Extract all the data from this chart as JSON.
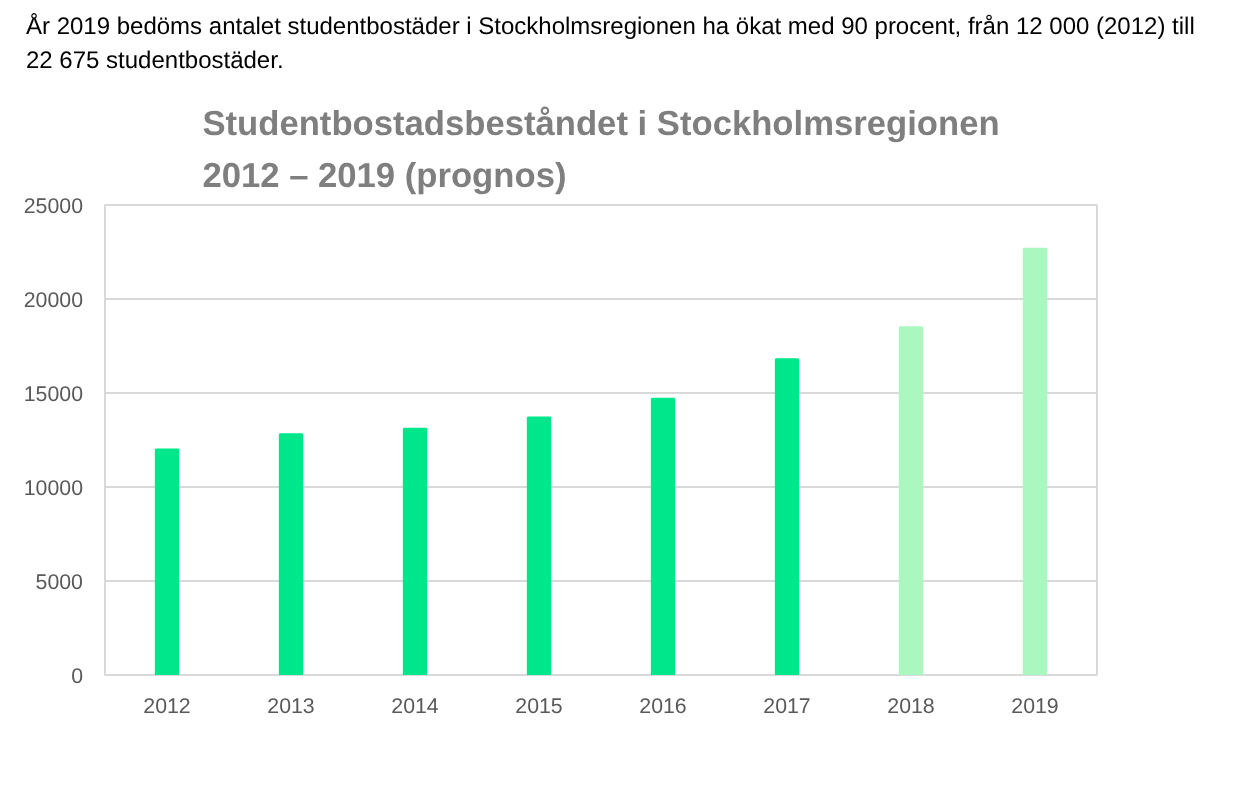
{
  "chart_data": {
    "type": "bar",
    "title": "Studentbostadsbeståndet i Stockholmsregionen\n2012 – 2019 (prognos)",
    "annotations": [
      "År 2019 bedöms antalet studentbostäder i Stockholmsregionen ha ökat med 90 procent, från 12 000 (2012) till 22 675 studentbostäder."
    ],
    "categories": [
      "2012",
      "2013",
      "2014",
      "2015",
      "2016",
      "2017",
      "2018",
      "2019"
    ],
    "values": [
      12000,
      12800,
      13100,
      13700,
      14700,
      16800,
      18500,
      22675
    ],
    "colors": [
      "#00e68a",
      "#00e68a",
      "#00e68a",
      "#00e68a",
      "#00e68a",
      "#00e68a",
      "#aaf7c0",
      "#aaf7c0"
    ],
    "ylim": [
      0,
      25000
    ],
    "yticks": [
      0,
      5000,
      10000,
      15000,
      20000,
      25000
    ],
    "grid": "y"
  }
}
